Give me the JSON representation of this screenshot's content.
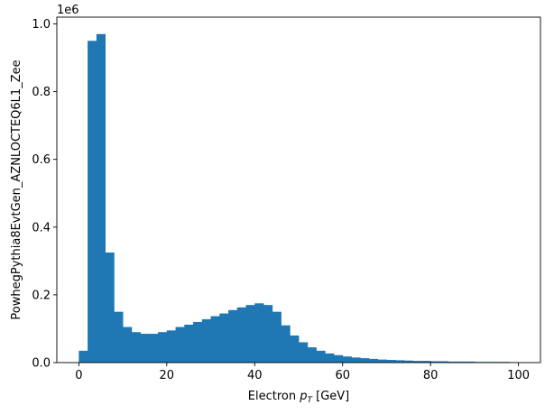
{
  "chart_data": {
    "type": "bar",
    "style": "histogram",
    "bar_color": "#1f77b4",
    "xlabel_prefix": "Electron ",
    "xlabel_var": "p",
    "xlabel_sub": "T",
    "xlabel_suffix": " [GeV]",
    "ylabel": "PowhegPythia8EvtGen_AZNLOCTEQ6L1_Zee",
    "y_scale_label": "1e6",
    "xlim": [
      -5,
      105
    ],
    "ylim": [
      0,
      1.02
    ],
    "x_ticks": [
      0,
      20,
      40,
      60,
      80,
      100
    ],
    "x_tick_labels": [
      "0",
      "20",
      "40",
      "60",
      "80",
      "100"
    ],
    "y_ticks": [
      0,
      0.2,
      0.4,
      0.6,
      0.8,
      1.0
    ],
    "y_tick_labels": [
      "0.0",
      "0.2",
      "0.4",
      "0.6",
      "0.8",
      "1.0"
    ],
    "bin_edges": [
      0,
      2,
      4,
      6,
      8,
      10,
      12,
      14,
      16,
      18,
      20,
      22,
      24,
      26,
      28,
      30,
      32,
      34,
      36,
      38,
      40,
      42,
      44,
      46,
      48,
      50,
      52,
      54,
      56,
      58,
      60,
      62,
      64,
      66,
      68,
      70,
      72,
      74,
      76,
      78,
      80,
      82,
      84,
      86,
      88,
      90,
      92,
      94,
      96,
      98,
      100
    ],
    "values": [
      0.035,
      0.95,
      0.97,
      0.325,
      0.15,
      0.105,
      0.09,
      0.085,
      0.085,
      0.09,
      0.095,
      0.105,
      0.112,
      0.12,
      0.128,
      0.137,
      0.145,
      0.155,
      0.163,
      0.17,
      0.175,
      0.17,
      0.15,
      0.11,
      0.08,
      0.06,
      0.045,
      0.035,
      0.027,
      0.022,
      0.018,
      0.015,
      0.013,
      0.011,
      0.009,
      0.008,
      0.007,
      0.006,
      0.005,
      0.005,
      0.004,
      0.004,
      0.003,
      0.003,
      0.003,
      0.002,
      0.002,
      0.002,
      0.002,
      0.001
    ]
  }
}
